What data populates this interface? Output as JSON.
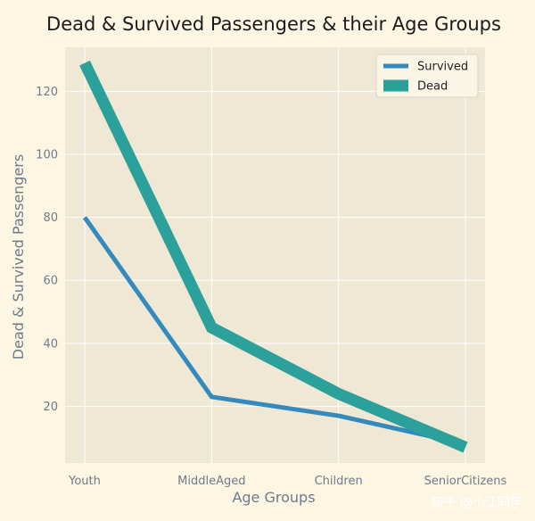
{
  "chart_data": {
    "type": "line",
    "title": "Dead & Survived Passengers & their Age Groups",
    "xlabel": "Age Groups",
    "ylabel": "Dead & Survived Passengers",
    "categories": [
      "Youth",
      "MiddleAged",
      "Children",
      "SeniorCitizens"
    ],
    "series": [
      {
        "name": "Survived",
        "values": [
          80,
          23,
          17,
          8
        ],
        "color": "#348ABD"
      },
      {
        "name": "Dead",
        "values": [
          129,
          45,
          24,
          7
        ],
        "color": "#2ca09b"
      }
    ],
    "ylim": [
      2,
      134
    ],
    "yticks": [
      20,
      40,
      60,
      80,
      100,
      120
    ],
    "grid": true,
    "legend_position": "top-right"
  },
  "watermark": "知乎 @小江同学",
  "colors": {
    "page_background": "#fdf6e3",
    "plot_background": "#eee8d5",
    "grid": "#ffffff"
  }
}
